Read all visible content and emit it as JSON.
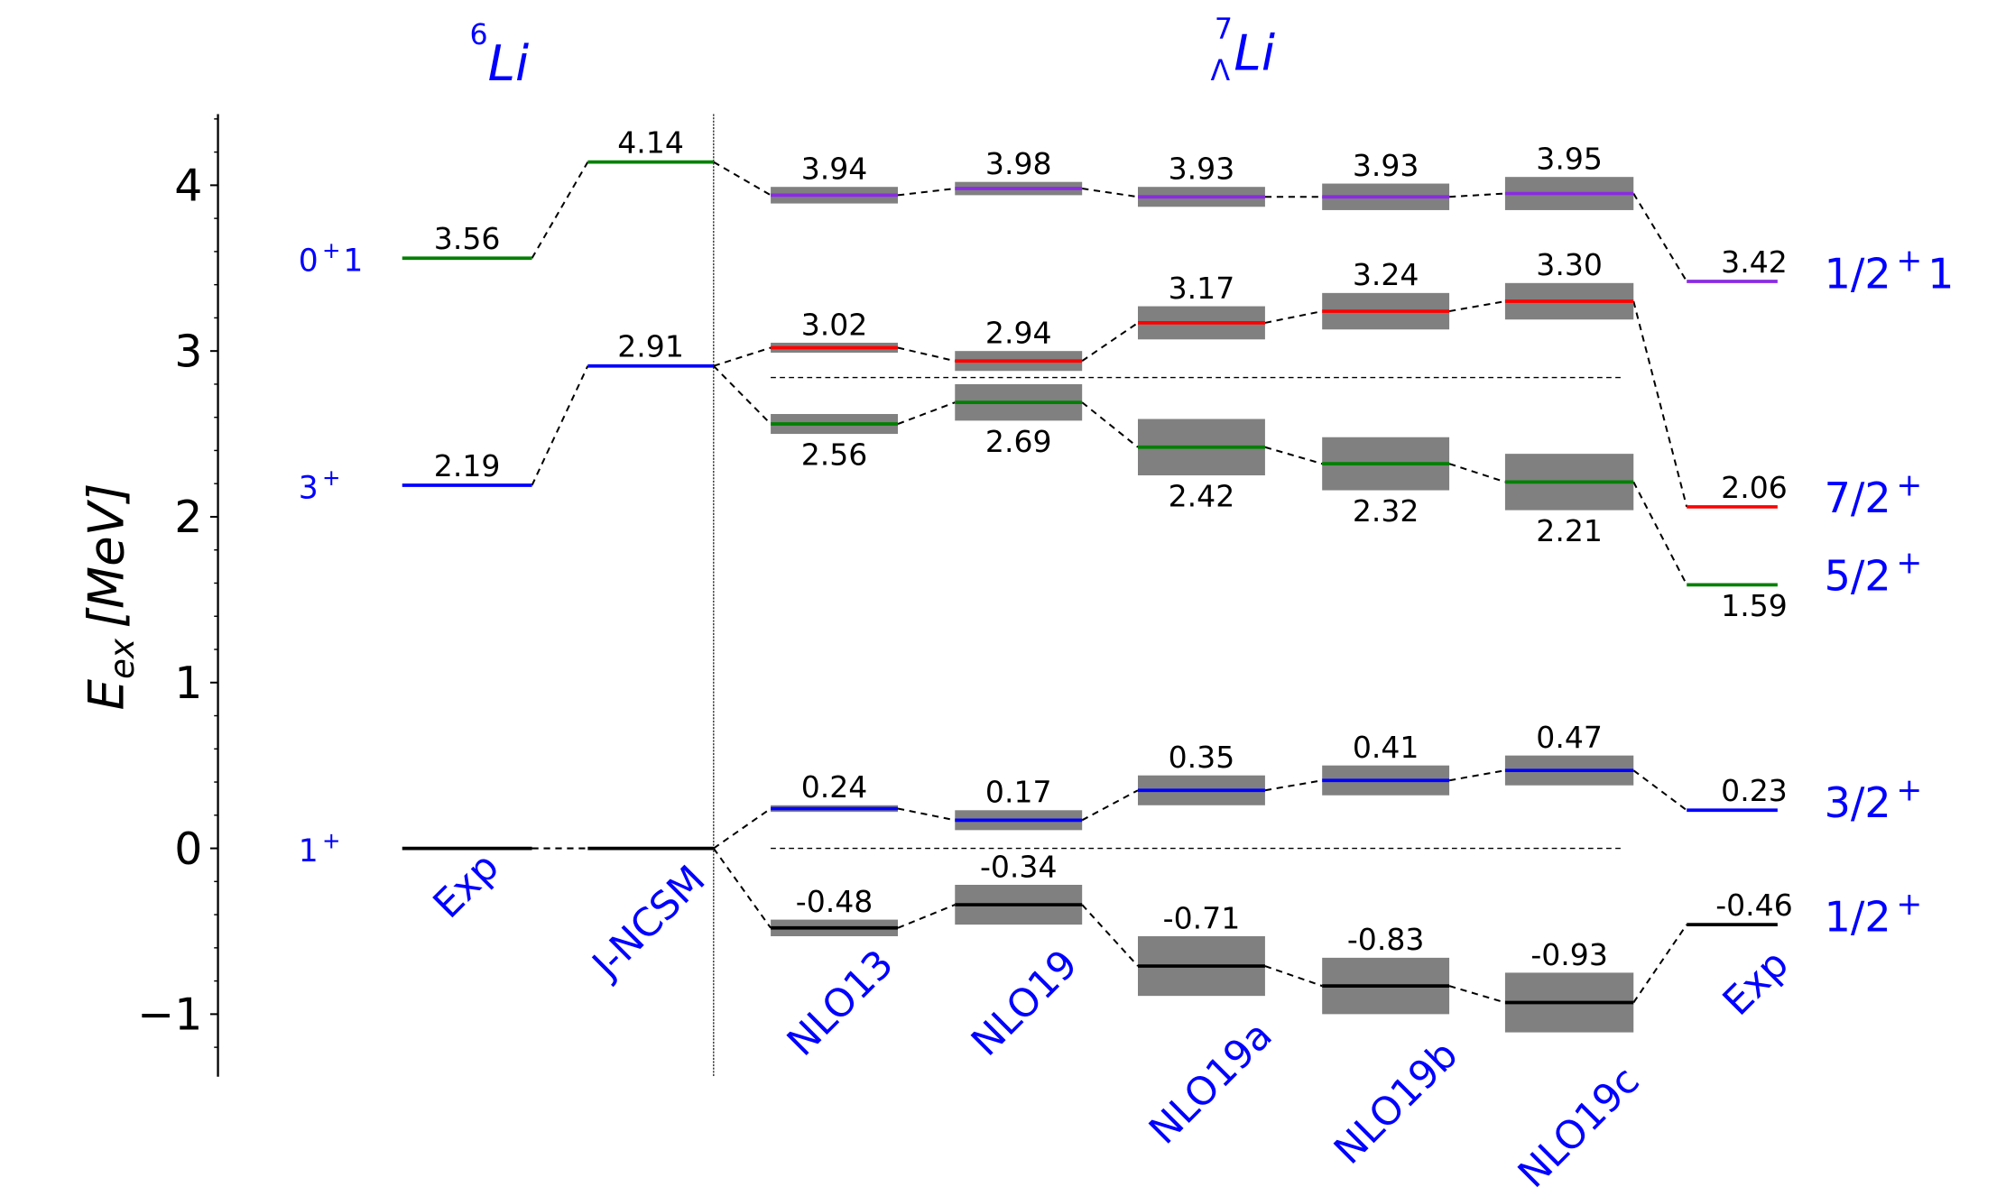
{
  "chart_data": {
    "type": "level-scheme",
    "ylabel": "E_ex [MeV]",
    "ylabel_parts": {
      "main": "E",
      "sub": "ex",
      "unit": "[MeV]"
    },
    "ylim": [
      -1.35,
      4.43
    ],
    "yticks": [
      4,
      3,
      2,
      1,
      0,
      -1
    ],
    "ytick_labels": [
      "4",
      "3",
      "2",
      "1",
      "0",
      "−1"
    ],
    "minor_tick_step": 0.2,
    "grid": false,
    "nuclei": [
      {
        "name": "6Li",
        "mass": "6",
        "symbol": "Li"
      },
      {
        "name": "7ΛLi",
        "mass": "7",
        "sub": "Λ",
        "symbol": "Li"
      }
    ],
    "columns": [
      "Exp",
      "J-NCSM",
      "NLO13",
      "NLO19",
      "NLO19a",
      "NLO19b",
      "NLO19c",
      "Exp"
    ],
    "colors": {
      "black": "#000000",
      "blue": "#0000ff",
      "green": "#008000",
      "red": "#ff0000",
      "purple": "#8a2be2",
      "band": "#808080",
      "label": "#0000ff"
    },
    "li6_states": [
      {
        "label": "0⁺1",
        "label_main": "0",
        "label_sup": "+",
        "label_tail": "1",
        "color": "green",
        "Exp": 3.56,
        "J-NCSM": 4.14
      },
      {
        "label": "3⁺",
        "label_main": "3",
        "label_sup": "+",
        "label_tail": "",
        "color": "blue",
        "Exp": 2.19,
        "J-NCSM": 2.91
      },
      {
        "label": "1⁺",
        "label_main": "1",
        "label_sup": "+",
        "label_tail": "",
        "color": "black",
        "Exp": 0.0,
        "J-NCSM": 0.0
      }
    ],
    "series": [
      {
        "name": "1/2+1",
        "label_main": "1/2",
        "label_sup": "+",
        "label_tail": "1",
        "color": "purple",
        "parent": 0,
        "values": [
          3.94,
          3.98,
          3.93,
          3.93,
          3.95
        ],
        "value_labels": [
          "3.94",
          "3.98",
          "3.93",
          "3.93",
          "3.95"
        ],
        "uncertainty": [
          0.05,
          0.04,
          0.06,
          0.08,
          0.1
        ],
        "label_pos": "above",
        "exp": 3.42,
        "exp_label": "3.42",
        "exp_label_pos": "above"
      },
      {
        "name": "7/2+",
        "label_main": "7/2",
        "label_sup": "+",
        "label_tail": "",
        "color": "red",
        "parent": 1,
        "values": [
          3.02,
          2.94,
          3.17,
          3.24,
          3.3
        ],
        "value_labels": [
          "3.02",
          "2.94",
          "3.17",
          "3.24",
          "3.30"
        ],
        "uncertainty": [
          0.03,
          0.06,
          0.1,
          0.11,
          0.11
        ],
        "label_pos": "above",
        "exp": 2.06,
        "exp_label": "2.06",
        "exp_label_pos": "above"
      },
      {
        "name": "5/2+",
        "label_main": "5/2",
        "label_sup": "+",
        "label_tail": "",
        "color": "green",
        "parent": 1,
        "values": [
          2.56,
          2.69,
          2.42,
          2.32,
          2.21
        ],
        "value_labels": [
          "2.56",
          "2.69",
          "2.42",
          "2.32",
          "2.21"
        ],
        "uncertainty": [
          0.06,
          0.11,
          0.17,
          0.16,
          0.17
        ],
        "label_pos": "below",
        "exp": 1.59,
        "exp_label": "1.59",
        "exp_label_pos": "below"
      },
      {
        "name": "3/2+",
        "label_main": "3/2",
        "label_sup": "+",
        "label_tail": "",
        "color": "blue",
        "parent": 2,
        "values": [
          0.24,
          0.17,
          0.35,
          0.41,
          0.47
        ],
        "value_labels": [
          "0.24",
          "0.17",
          "0.35",
          "0.41",
          "0.47"
        ],
        "uncertainty": [
          0.02,
          0.06,
          0.09,
          0.09,
          0.09
        ],
        "label_pos": "above",
        "exp": 0.23,
        "exp_label": "0.23",
        "exp_label_pos": "above"
      },
      {
        "name": "1/2+",
        "label_main": "1/2",
        "label_sup": "+",
        "label_tail": "",
        "color": "black",
        "parent": 2,
        "values": [
          -0.48,
          -0.34,
          -0.71,
          -0.83,
          -0.93
        ],
        "value_labels": [
          "-0.48",
          "-0.34",
          "-0.71",
          "-0.83",
          "-0.93"
        ],
        "uncertainty": [
          0.05,
          0.12,
          0.18,
          0.17,
          0.18
        ],
        "label_pos": "above",
        "exp": -0.46,
        "exp_label": "-0.46",
        "exp_label_pos": "above"
      }
    ],
    "li6_value_labels": {
      "Exp": [
        "3.56",
        "2.19",
        ""
      ],
      "J-NCSM": [
        "4.14",
        "2.91",
        ""
      ]
    },
    "reference_lines": [
      2.84,
      0.0
    ]
  }
}
